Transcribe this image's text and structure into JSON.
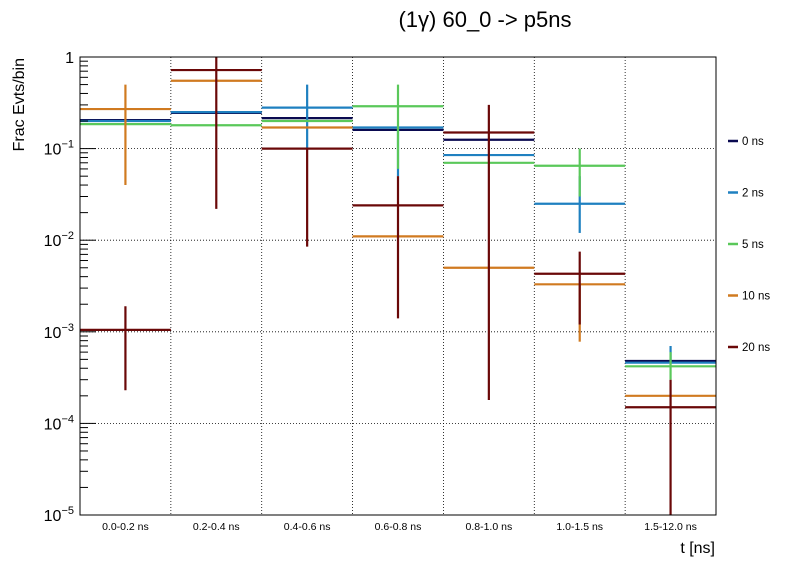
{
  "chart_data": {
    "type": "histogram-errorbars",
    "title": "(1γ) 60_0 -> p5ns",
    "xlabel": "t [ns]",
    "ylabel": "Frac Evts/bin",
    "y_scale": "log",
    "ylim": [
      1e-05,
      1
    ],
    "grid": true,
    "legend_position": "right",
    "categories": [
      "0.0-0.2 ns",
      "0.2-0.4 ns",
      "0.4-0.6 ns",
      "0.6-0.8 ns",
      "0.8-1.0 ns",
      "1.0-1.5 ns",
      "1.5-12.0 ns"
    ],
    "series": [
      {
        "name": "0 ns",
        "color": "#0a0a50",
        "values": [
          0.205,
          0.245,
          0.215,
          0.16,
          0.125,
          null,
          0.00048
        ],
        "err_low": [
          0.205,
          0.245,
          0.215,
          0.16,
          0.125,
          null,
          0.00048
        ],
        "err_high": [
          0.205,
          0.245,
          0.215,
          0.16,
          0.125,
          null,
          0.00048
        ]
      },
      {
        "name": "2 ns",
        "color": "#1f80c0",
        "values": [
          0.2,
          0.25,
          0.28,
          0.17,
          0.085,
          0.025,
          0.00046
        ],
        "err_low": [
          0.2,
          0.25,
          0.1,
          0.05,
          0.085,
          0.012,
          0.00046
        ],
        "err_high": [
          0.2,
          0.25,
          0.5,
          0.17,
          0.085,
          0.05,
          0.0007
        ]
      },
      {
        "name": "5 ns",
        "color": "#5ac85a",
        "values": [
          0.185,
          0.18,
          0.2,
          0.29,
          0.07,
          0.065,
          0.00042
        ],
        "err_low": [
          0.185,
          0.18,
          0.2,
          0.06,
          0.07,
          0.03,
          0.0003
        ],
        "err_high": [
          0.185,
          0.18,
          0.2,
          0.5,
          0.07,
          0.1,
          0.0006
        ]
      },
      {
        "name": "10 ns",
        "color": "#d07a20",
        "values": [
          0.27,
          0.55,
          0.17,
          0.011,
          0.005,
          0.0033,
          0.0002
        ],
        "err_low": [
          0.04,
          0.55,
          0.17,
          0.011,
          0.005,
          0.00078,
          0.0002
        ],
        "err_high": [
          0.5,
          0.55,
          0.17,
          0.011,
          0.005,
          0.0033,
          0.0002
        ]
      },
      {
        "name": "20 ns",
        "color": "#6a0808",
        "values": [
          0.00105,
          0.72,
          0.1,
          0.024,
          0.15,
          0.0043,
          0.00015
        ],
        "err_low": [
          0.00023,
          0.022,
          0.0085,
          0.0014,
          0.00018,
          0.0012,
          1e-05
        ],
        "err_high": [
          0.0019,
          1.0,
          0.1,
          0.05,
          0.3,
          0.0075,
          0.0003
        ]
      }
    ]
  }
}
